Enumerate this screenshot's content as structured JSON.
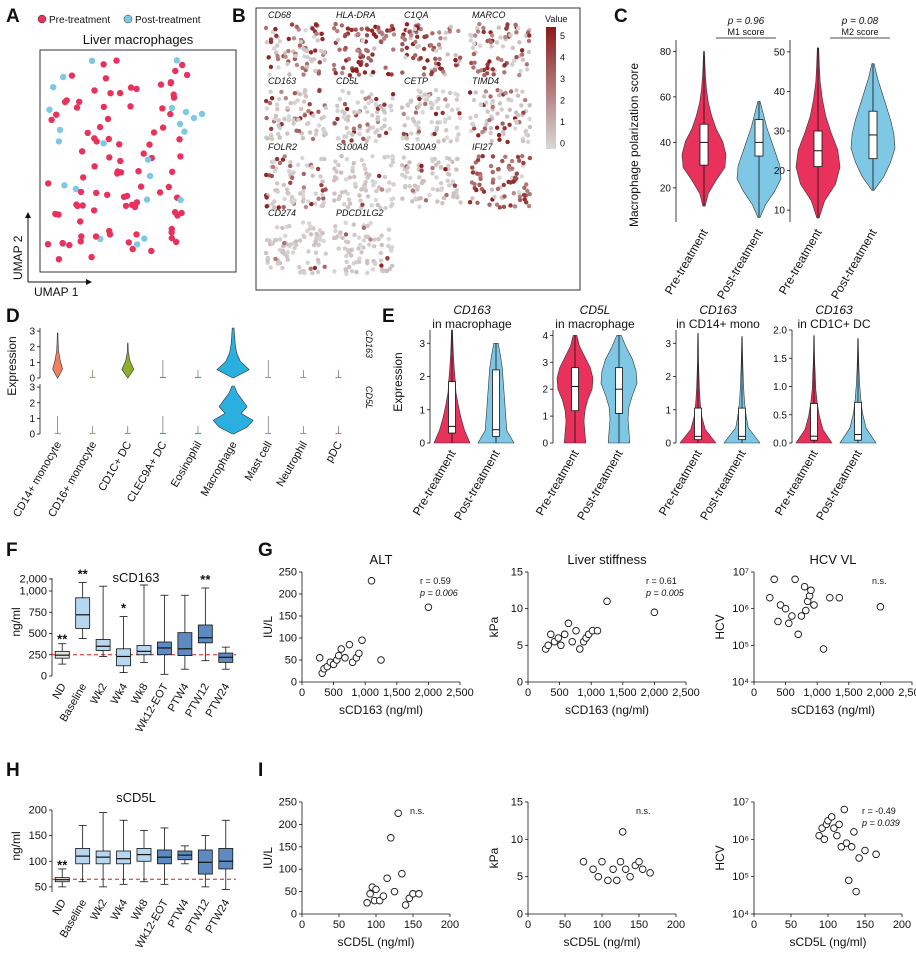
{
  "colors": {
    "pre": "#e8325c",
    "post": "#7ec8e6",
    "box": "#a9cdea",
    "boxDark": "#2f5f93",
    "redline": "#e41a1c",
    "legend": "#ffffff"
  },
  "panel_labels": [
    "A",
    "B",
    "C",
    "D",
    "E",
    "F",
    "G",
    "H",
    "I"
  ],
  "panelA": {
    "legend_pre": "Pre-treatment",
    "legend_post": "Post-treatment",
    "title": "Liver macrophages",
    "xlabel": "UMAP 1",
    "ylabel": "UMAP 2"
  },
  "panelB": {
    "genes": [
      "CD68",
      "HLA-DRA",
      "C1QA",
      "MARCO",
      "CD163",
      "CD5L",
      "CETP",
      "TIMD4",
      "FOLR2",
      "S100A8",
      "S100A9",
      "IFI27",
      "CD274",
      "PDCD1LG2"
    ],
    "intensity": [
      0.55,
      0.9,
      0.7,
      0.65,
      0.35,
      0.3,
      0.15,
      0.25,
      0.45,
      0.08,
      0.1,
      0.75,
      0.08,
      0.08
    ],
    "legend_title": "Value",
    "legend_ticks": [
      "5",
      "4",
      "3",
      "2",
      "1",
      "0"
    ]
  },
  "panelC": {
    "ylabel": "Macrophage polarization score",
    "categories": [
      "Pre-treatment",
      "Post-treatment"
    ],
    "charts": [
      {
        "label": "M1 score",
        "pvalue": "p = 0.96",
        "yticks": [
          "20",
          "40",
          "60",
          "80"
        ],
        "ylim": [
          5,
          85
        ]
      },
      {
        "label": "M2 score",
        "pvalue": "p = 0.08",
        "yticks": [
          "10",
          "20",
          "30",
          "40",
          "50"
        ],
        "ylim": [
          7,
          53
        ]
      }
    ]
  },
  "panelD": {
    "ylabel": "Expression",
    "genes": [
      "CD163",
      "CD5L"
    ],
    "yticks": [
      "0",
      "1",
      "2",
      "3"
    ],
    "categories": [
      "CD14+ monocyte",
      "CD16+ monocyte",
      "CD1C+ DC",
      "CLEC9A+ DC",
      "Eosinophil",
      "Macrophage",
      "Mast cell",
      "Neutrophil",
      "pDC"
    ],
    "colors": [
      "#f08060",
      "#c8a63c",
      "#8cae2a",
      "#35b07e",
      "#2ab0b0",
      "#2ab0e0",
      "#7a9cf0",
      "#c77df0",
      "#f060c0"
    ]
  },
  "panelE": {
    "ylabel": "Expression",
    "categories": [
      "Pre-treatment",
      "Post-treatment"
    ],
    "charts": [
      {
        "gene": "CD163",
        "subtitle": "in macrophage",
        "yticks": [
          "0",
          "1",
          "2",
          "3"
        ],
        "ylim": [
          0,
          3.4
        ]
      },
      {
        "gene": "CD5L",
        "subtitle": "in macrophage",
        "yticks": [
          "0",
          "1",
          "2",
          "3",
          "4"
        ],
        "ylim": [
          0,
          4.2
        ]
      },
      {
        "gene": "CD163",
        "subtitle": "in CD14+ mono",
        "yticks": [
          "0",
          "1",
          "2",
          "3"
        ],
        "ylim": [
          0,
          3.4
        ]
      },
      {
        "gene": "CD163",
        "subtitle": "in CD1C+ DC",
        "yticks": [
          "0.0",
          "0.5",
          "1.0",
          "1.5",
          "2.0"
        ],
        "ylim": [
          0,
          2.0
        ]
      }
    ]
  },
  "panelF": {
    "title": "sCD163",
    "ylabel": "ng/ml",
    "yticks": [
      "2,000",
      "1,000",
      "750",
      "500",
      "250",
      "0"
    ],
    "categories": [
      "ND",
      "Baseline",
      "Wk2",
      "Wk4",
      "Wk8",
      "Wk12-EOT",
      "PTW4",
      "PTW12",
      "PTW24"
    ],
    "stars": [
      "**",
      "**",
      "",
      "*",
      "",
      "",
      "",
      "**",
      ""
    ],
    "boxes": [
      {
        "min": 140,
        "q1": 210,
        "med": 245,
        "q3": 290,
        "max": 380
      },
      {
        "min": 440,
        "q1": 560,
        "med": 720,
        "q3": 920,
        "max": 1700
      },
      {
        "min": 230,
        "q1": 300,
        "med": 350,
        "q3": 430,
        "max": 1400
      },
      {
        "min": 40,
        "q1": 120,
        "med": 230,
        "q3": 320,
        "max": 700
      },
      {
        "min": 160,
        "q1": 250,
        "med": 290,
        "q3": 360,
        "max": 1500
      },
      {
        "min": 20,
        "q1": 250,
        "med": 330,
        "q3": 400,
        "max": 950
      },
      {
        "min": 80,
        "q1": 240,
        "med": 320,
        "q3": 510,
        "max": 950
      },
      {
        "min": 180,
        "q1": 390,
        "med": 450,
        "q3": 600,
        "max": 1250
      },
      {
        "min": 80,
        "q1": 160,
        "med": 220,
        "q3": 270,
        "max": 340
      }
    ]
  },
  "panelH": {
    "title": "sCD5L",
    "ylabel": "ng/ml",
    "yticks": [
      "50",
      "100",
      "150",
      "200"
    ],
    "categories": [
      "ND",
      "Baseline",
      "Wk2",
      "Wk4",
      "Wk8",
      "Wk12-EOT",
      "PTW4",
      "PTW12",
      "PTW24"
    ],
    "stars": [
      "**",
      "",
      "",
      "",
      "",
      "",
      "",
      "",
      ""
    ],
    "boxes": [
      {
        "min": 50,
        "q1": 60,
        "med": 64,
        "q3": 68,
        "max": 85
      },
      {
        "min": 60,
        "q1": 95,
        "med": 110,
        "q3": 125,
        "max": 170
      },
      {
        "min": 50,
        "q1": 95,
        "med": 108,
        "q3": 120,
        "max": 195
      },
      {
        "min": 55,
        "q1": 95,
        "med": 105,
        "q3": 120,
        "max": 180
      },
      {
        "min": 60,
        "q1": 100,
        "med": 113,
        "q3": 125,
        "max": 160
      },
      {
        "min": 55,
        "q1": 95,
        "med": 108,
        "q3": 122,
        "max": 165
      },
      {
        "min": 95,
        "q1": 103,
        "med": 112,
        "q3": 120,
        "max": 130
      },
      {
        "min": 50,
        "q1": 75,
        "med": 98,
        "q3": 122,
        "max": 150
      },
      {
        "min": 45,
        "q1": 85,
        "med": 100,
        "q3": 125,
        "max": 180
      }
    ]
  },
  "chart_data": [
    {
      "type": "scatter",
      "title": "ALT",
      "xlabel": "sCD163 (ng/ml)",
      "ylabel": "IU/L",
      "xlim": [
        0,
        2500
      ],
      "ylim": [
        0,
        250
      ],
      "xticks": [
        "0",
        "500",
        "1,000",
        "1,500",
        "2,000",
        "2,500"
      ],
      "yticks": [
        "0",
        "50",
        "100",
        "150",
        "200",
        "250"
      ],
      "stat1": "r = 0.59",
      "stat2": "p = 0.006",
      "x": [
        280,
        320,
        350,
        400,
        450,
        500,
        550,
        580,
        620,
        680,
        750,
        800,
        860,
        900,
        950,
        1100,
        1250,
        2000
      ],
      "y": [
        55,
        20,
        30,
        35,
        45,
        40,
        50,
        60,
        75,
        55,
        85,
        45,
        55,
        65,
        95,
        230,
        50,
        170
      ]
    },
    {
      "type": "scatter",
      "title": "Liver stiffness",
      "xlabel": "sCD163 (ng/ml)",
      "ylabel": "kPa",
      "xlim": [
        0,
        2500
      ],
      "ylim": [
        0,
        15
      ],
      "xticks": [
        "0",
        "500",
        "1,000",
        "1,500",
        "2,000",
        "2,500"
      ],
      "yticks": [
        "0",
        "5",
        "10",
        "15"
      ],
      "stat1": "r = 0.61",
      "stat2": "p = 0.005",
      "x": [
        280,
        320,
        360,
        420,
        480,
        520,
        580,
        640,
        700,
        760,
        820,
        880,
        920,
        960,
        1020,
        1100,
        1250,
        2000
      ],
      "y": [
        4.5,
        5,
        6.5,
        5.5,
        6,
        5,
        6.5,
        8,
        5.5,
        7,
        4.5,
        5.5,
        6,
        6.5,
        7,
        7,
        11,
        9.5
      ]
    },
    {
      "type": "scatter",
      "title": "HCV VL",
      "xlabel": "sCD163 (ng/ml)",
      "ylabel": "HCV",
      "log_y": true,
      "xlim": [
        0,
        2500
      ],
      "ylim": [
        4,
        7
      ],
      "xticks": [
        "0",
        "500",
        "1,000",
        "1,500",
        "2,000",
        "2,500"
      ],
      "yticks": [
        "10⁴",
        "10⁵",
        "10⁶",
        "10⁷"
      ],
      "stat1": "n.s.",
      "stat2": "",
      "x": [
        250,
        320,
        380,
        420,
        500,
        550,
        600,
        650,
        700,
        750,
        800,
        820,
        850,
        880,
        900,
        950,
        1100,
        1200,
        1350,
        2000
      ],
      "y": [
        6.3,
        6.8,
        5.65,
        6.1,
        6.0,
        5.6,
        5.8,
        6.8,
        5.3,
        5.8,
        6.6,
        5.95,
        6.2,
        6.35,
        6.5,
        6.1,
        4.9,
        6.3,
        6.3,
        6.05
      ]
    },
    {
      "type": "scatter",
      "title": "",
      "xlabel": "sCD5L (ng/ml)",
      "ylabel": "IU/L",
      "xlim": [
        0,
        200
      ],
      "ylim": [
        0,
        250
      ],
      "xticks": [
        "0",
        "50",
        "100",
        "150",
        "200"
      ],
      "yticks": [
        "0",
        "50",
        "100",
        "150",
        "200",
        "250"
      ],
      "stat1": "n.s.",
      "stat2": "",
      "x": [
        88,
        92,
        95,
        98,
        100,
        105,
        110,
        115,
        120,
        125,
        130,
        135,
        140,
        145,
        150,
        158
      ],
      "y": [
        25,
        45,
        60,
        30,
        55,
        30,
        40,
        80,
        170,
        50,
        225,
        90,
        20,
        35,
        45,
        45
      ]
    },
    {
      "type": "scatter",
      "title": "",
      "xlabel": "sCD5L (ng/ml)",
      "ylabel": "kPa",
      "xlim": [
        0,
        200
      ],
      "ylim": [
        0,
        15
      ],
      "xticks": [
        "0",
        "50",
        "100",
        "150",
        "200"
      ],
      "yticks": [
        "0",
        "5",
        "10",
        "15"
      ],
      "stat1": "n.s.",
      "stat2": "",
      "x": [
        75,
        88,
        95,
        100,
        108,
        115,
        120,
        125,
        128,
        132,
        138,
        145,
        150,
        155,
        165
      ],
      "y": [
        7,
        6,
        5,
        7,
        4.5,
        6,
        4.5,
        7,
        11,
        6,
        5,
        6.5,
        7,
        6,
        5.5
      ]
    },
    {
      "type": "scatter",
      "title": "",
      "xlabel": "sCD5L (ng/ml)",
      "ylabel": "HCV",
      "log_y": true,
      "xlim": [
        0,
        200
      ],
      "ylim": [
        4,
        7
      ],
      "xticks": [
        "0",
        "50",
        "100",
        "150",
        "200"
      ],
      "yticks": [
        "10⁴",
        "10⁵",
        "10⁶",
        "10⁷"
      ],
      "stat1": "r = -0.49",
      "stat2": "p = 0.039",
      "x": [
        88,
        92,
        95,
        98,
        100,
        105,
        108,
        112,
        115,
        118,
        122,
        125,
        128,
        132,
        135,
        138,
        142,
        150,
        165
      ],
      "y": [
        6.1,
        6.3,
        6.0,
        6.4,
        6.5,
        6.6,
        6.3,
        6.1,
        6.4,
        5.8,
        6.8,
        5.9,
        4.9,
        5.8,
        6.2,
        4.6,
        5.5,
        5.7,
        5.6
      ]
    }
  ]
}
